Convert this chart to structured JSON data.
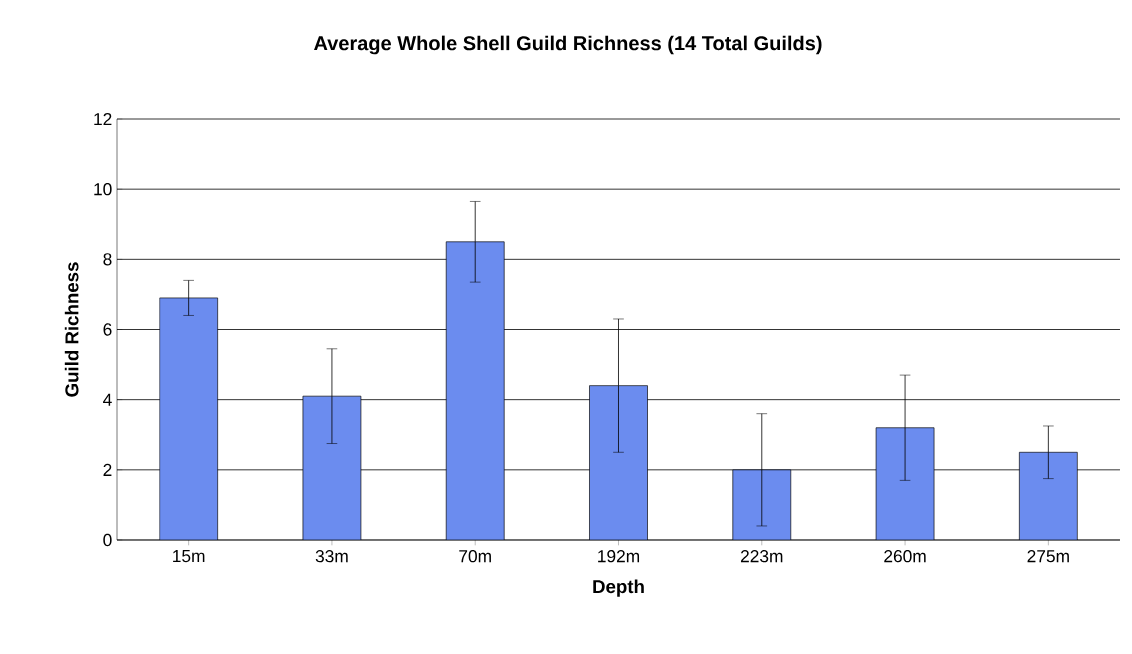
{
  "chart_data": {
    "type": "bar",
    "title": "Average Whole Shell Guild Richness (14 Total Guilds)",
    "xlabel": "Depth",
    "ylabel": "Guild Richness",
    "categories": [
      "15m",
      "33m",
      "70m",
      "192m",
      "223m",
      "260m",
      "275m"
    ],
    "values": [
      6.9,
      4.1,
      8.5,
      4.4,
      2.0,
      3.2,
      2.5
    ],
    "errors": [
      0.5,
      1.35,
      1.15,
      1.9,
      1.6,
      1.5,
      0.75
    ],
    "color": "#6b8cef",
    "ylim": [
      0,
      12
    ],
    "yticks": [
      0,
      2,
      4,
      6,
      8,
      10,
      12
    ],
    "grid": "y"
  }
}
